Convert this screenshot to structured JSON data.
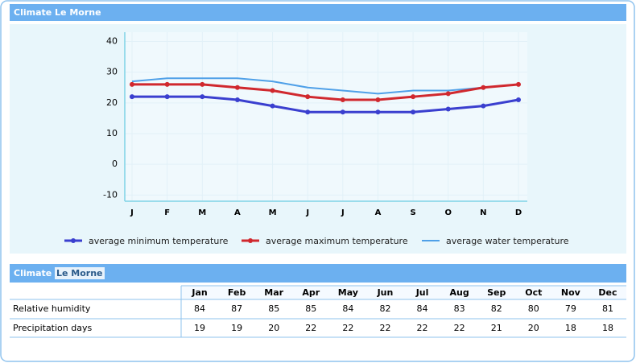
{
  "panel_top": {
    "title": "Climate Le Morne"
  },
  "chart_data": {
    "type": "line",
    "categories": [
      "J",
      "F",
      "M",
      "A",
      "M",
      "J",
      "J",
      "A",
      "S",
      "O",
      "N",
      "D"
    ],
    "series": [
      {
        "name": "average minimum temperature",
        "color": "#3a3fcf",
        "markers": true,
        "values": [
          22,
          22,
          22,
          21,
          19,
          17,
          17,
          17,
          17,
          18,
          19,
          21
        ]
      },
      {
        "name": "average maximum temperature",
        "color": "#d0282e",
        "markers": true,
        "values": [
          26,
          26,
          26,
          25,
          24,
          22,
          21,
          21,
          22,
          23,
          25,
          26
        ]
      },
      {
        "name": "average water temperature",
        "color": "#4fa0e8",
        "markers": false,
        "values": [
          27,
          28,
          28,
          28,
          27,
          25,
          24,
          23,
          24,
          24,
          25,
          26
        ]
      }
    ],
    "ylim": [
      -12,
      43
    ],
    "yticks": [
      -10,
      0,
      10,
      20,
      30,
      40
    ],
    "grid": true,
    "legend": "bottom"
  },
  "panel_bottom": {
    "title": "Climate",
    "highlight": "Le Morne"
  },
  "table": {
    "columns": [
      "Jan",
      "Feb",
      "Mar",
      "Apr",
      "May",
      "Jun",
      "Jul",
      "Aug",
      "Sep",
      "Oct",
      "Nov",
      "Dec"
    ],
    "rows": [
      {
        "label": "Relative humidity",
        "values": [
          84,
          87,
          85,
          85,
          84,
          82,
          84,
          83,
          82,
          80,
          79,
          81
        ]
      },
      {
        "label": "Precipitation days",
        "values": [
          19,
          19,
          20,
          22,
          22,
          22,
          22,
          22,
          21,
          20,
          18,
          18
        ]
      }
    ]
  }
}
